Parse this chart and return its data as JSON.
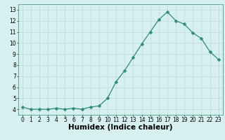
{
  "x": [
    0,
    1,
    2,
    3,
    4,
    5,
    6,
    7,
    8,
    9,
    10,
    11,
    12,
    13,
    14,
    15,
    16,
    17,
    18,
    19,
    20,
    21,
    22,
    23
  ],
  "y": [
    4.2,
    4.0,
    4.0,
    4.0,
    4.1,
    4.0,
    4.1,
    4.0,
    4.2,
    4.3,
    5.0,
    6.5,
    7.5,
    8.7,
    9.9,
    11.0,
    12.1,
    12.8,
    12.0,
    11.7,
    10.9,
    10.4,
    9.2,
    8.5
  ],
  "xlabel": "Humidex (Indice chaleur)",
  "xlim": [
    -0.5,
    23.5
  ],
  "ylim": [
    3.5,
    13.5
  ],
  "yticks": [
    4,
    5,
    6,
    7,
    8,
    9,
    10,
    11,
    12,
    13
  ],
  "xticks": [
    0,
    1,
    2,
    3,
    4,
    5,
    6,
    7,
    8,
    9,
    10,
    11,
    12,
    13,
    14,
    15,
    16,
    17,
    18,
    19,
    20,
    21,
    22,
    23
  ],
  "line_color": "#2e8b7a",
  "marker": "D",
  "marker_size": 2.5,
  "bg_color": "#d6f0ef",
  "grid_color": "#c0d8d8",
  "xlabel_fontsize": 7.5,
  "tick_fontsize": 5.5
}
